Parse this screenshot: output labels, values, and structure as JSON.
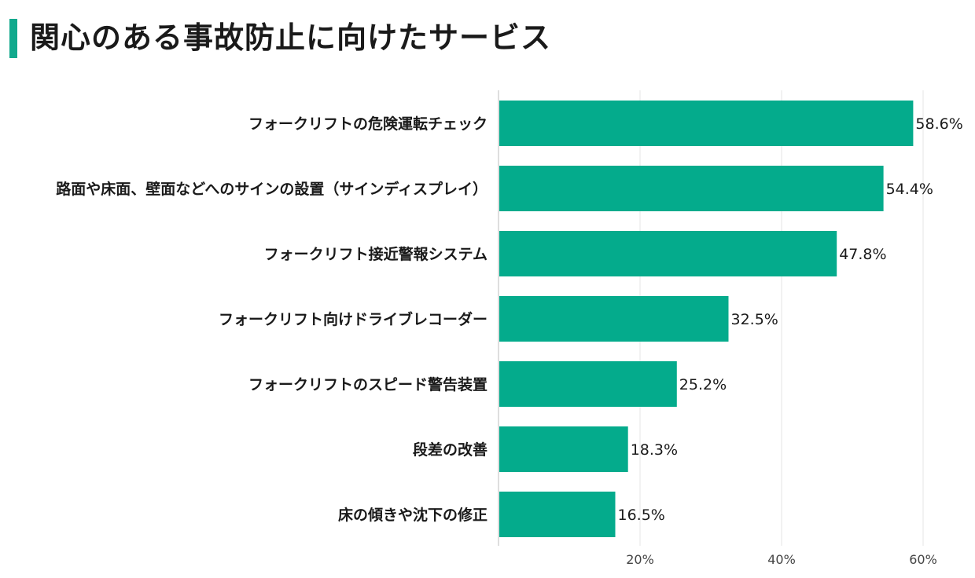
{
  "title": "関心のある事故防止に向けたサービス",
  "colors": {
    "accent": "#12a98d",
    "bar": "#04ab8c",
    "grid": "#e6e6e6",
    "axis": "#bdbdbd"
  },
  "chart_data": {
    "type": "bar",
    "orientation": "horizontal",
    "title": "関心のある事故防止に向けたサービス",
    "categories": [
      "フォークリフトの危険運転チェック",
      "路面や床面、壁面などへのサインの設置（サインディスプレイ）",
      "フォークリフト接近警報システム",
      "フォークリフト向けドライブレコーダー",
      "フォークリフトのスピード警告装置",
      "段差の改善",
      "床の傾きや沈下の修正"
    ],
    "values": [
      58.6,
      54.4,
      47.8,
      32.5,
      25.2,
      18.3,
      16.5
    ],
    "value_labels": [
      "58.6%",
      "54.4%",
      "47.8%",
      "32.5%",
      "25.2%",
      "18.3%",
      "16.5%"
    ],
    "xlim": [
      0,
      60
    ],
    "xticks": [
      20,
      40,
      60
    ],
    "xtick_labels": [
      "20%",
      "40%",
      "60%"
    ],
    "grid": true,
    "xlabel": "",
    "ylabel": ""
  }
}
